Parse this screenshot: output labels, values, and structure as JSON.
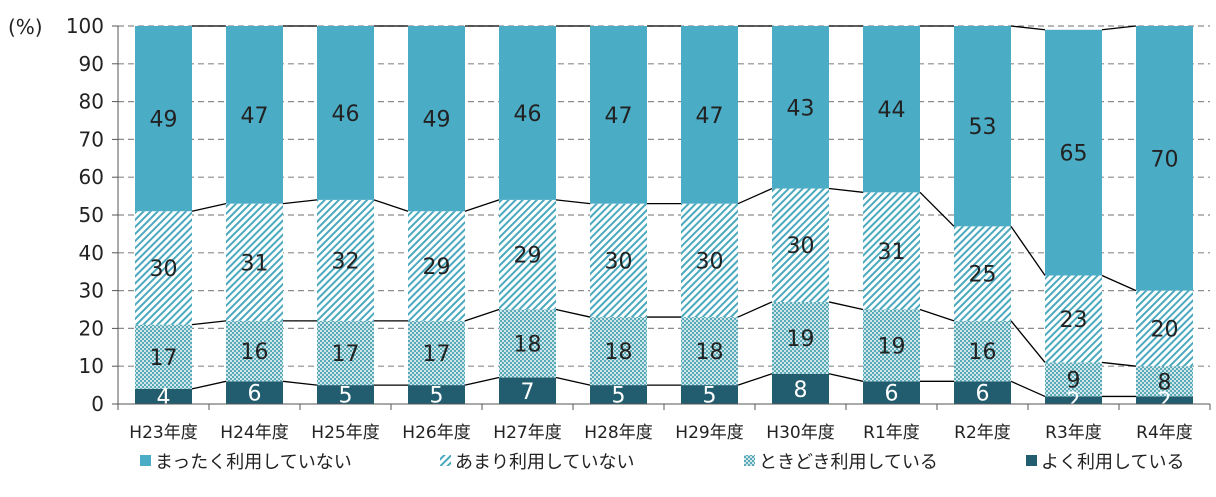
{
  "chart_data": {
    "type": "bar",
    "stacked": true,
    "unit_label": "(%)",
    "categories": [
      "H23年度",
      "H24年度",
      "H25年度",
      "H26年度",
      "H27年度",
      "H28年度",
      "H29年度",
      "H30年度",
      "R1年度",
      "R2年度",
      "R3年度",
      "R4年度"
    ],
    "series": [
      {
        "name": "よく利用している",
        "values": [
          4,
          6,
          5,
          5,
          7,
          5,
          5,
          8,
          6,
          6,
          2,
          2
        ],
        "color": "#215d6e",
        "pattern": "solid"
      },
      {
        "name": "ときどき利用している",
        "values": [
          17,
          16,
          17,
          17,
          18,
          18,
          18,
          19,
          19,
          16,
          9,
          8
        ],
        "color": "#8fc3cc",
        "pattern": "checker"
      },
      {
        "name": "あまり利用していない",
        "values": [
          30,
          31,
          32,
          29,
          29,
          30,
          30,
          30,
          31,
          25,
          23,
          20
        ],
        "color": "#4ba9bd",
        "pattern": "hatch"
      },
      {
        "name": "まったく利用していない",
        "values": [
          49,
          47,
          46,
          49,
          46,
          47,
          47,
          43,
          44,
          53,
          65,
          70
        ],
        "color": "#4bacc6",
        "pattern": "solid"
      }
    ],
    "ylim": [
      0,
      100
    ],
    "yticks": [
      0,
      10,
      20,
      30,
      40,
      50,
      60,
      70,
      80,
      90,
      100
    ],
    "grid": true,
    "legend_position": "bottom",
    "legend_order": [
      "まったく利用していない",
      "あまり利用していない",
      "ときどき利用している",
      "よく利用している"
    ]
  }
}
